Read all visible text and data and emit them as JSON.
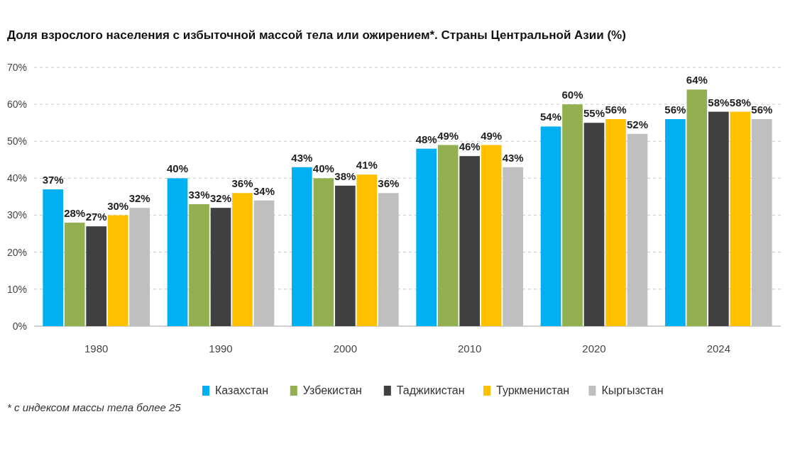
{
  "chart_data": {
    "type": "bar",
    "title": "Доля взрослого населения с избыточной массой тела или ожирением*. Страны Центральной Азии (%)",
    "categories": [
      "1980",
      "1990",
      "2000",
      "2010",
      "2020",
      "2024"
    ],
    "series": [
      {
        "name": "Казахстан",
        "color": "#00b0f0",
        "values": [
          37,
          40,
          43,
          48,
          54,
          56
        ],
        "value_labels": [
          "37%",
          "40%",
          "43%",
          "48%",
          "54%",
          "56%"
        ]
      },
      {
        "name": "Узбекистан",
        "color": "#92b050",
        "values": [
          28,
          33,
          40,
          49,
          60,
          64
        ],
        "value_labels": [
          "28%",
          "33%",
          "40%",
          "49%",
          "60%",
          "64%"
        ]
      },
      {
        "name": "Таджикистан",
        "color": "#404040",
        "values": [
          27,
          32,
          38,
          46,
          55,
          58
        ],
        "value_labels": [
          "27%",
          "32%",
          "38%",
          "46%",
          "55%",
          "58%"
        ]
      },
      {
        "name": "Туркменистан",
        "color": "#ffc000",
        "values": [
          30,
          36,
          41,
          49,
          56,
          58
        ],
        "value_labels": [
          "30%",
          "36%",
          "41%",
          "49%",
          "56%",
          "58%"
        ]
      },
      {
        "name": "Кыргызстан",
        "color": "#bfbfbf",
        "values": [
          32,
          34,
          36,
          43,
          52,
          56
        ],
        "value_labels": [
          "32%",
          "34%",
          "36%",
          "43%",
          "52%",
          "56%"
        ]
      }
    ],
    "ylim": [
      0,
      70
    ],
    "yticks": [
      {
        "value": 0,
        "label": "0%"
      },
      {
        "value": 10,
        "label": "10%"
      },
      {
        "value": 20,
        "label": "20%"
      },
      {
        "value": 30,
        "label": "30%"
      },
      {
        "value": 40,
        "label": "40%"
      },
      {
        "value": 50,
        "label": "50%"
      },
      {
        "value": 60,
        "label": "60%"
      },
      {
        "value": 70,
        "label": "70%"
      }
    ],
    "grid": "y",
    "legend": "bottom",
    "annotations": [
      "* с индексом массы тела более 25"
    ]
  }
}
